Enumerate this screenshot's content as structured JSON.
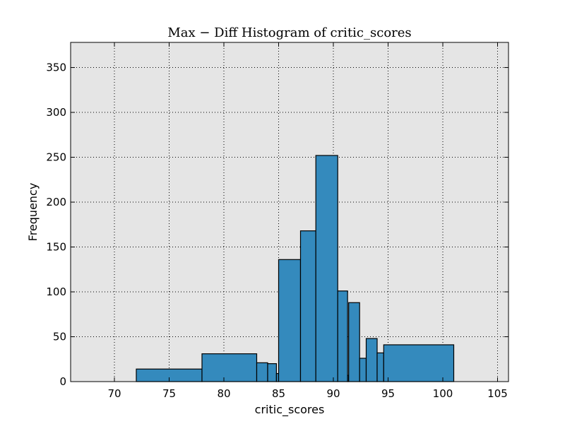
{
  "chart_data": {
    "type": "bar",
    "title": "Max − Diff Histogram of critic_scores",
    "xlabel": "critic_scores",
    "ylabel": "Frequency",
    "xlim": [
      66,
      106
    ],
    "ylim": [
      0,
      378
    ],
    "xticks": [
      "70",
      "75",
      "80",
      "85",
      "90",
      "95",
      "100",
      "105"
    ],
    "yticks": [
      "0",
      "50",
      "100",
      "150",
      "200",
      "250",
      "300",
      "350"
    ],
    "grid": true,
    "bins": [
      {
        "x0": 72.0,
        "x1": 78.0,
        "value": 14
      },
      {
        "x0": 78.0,
        "x1": 83.0,
        "value": 31
      },
      {
        "x0": 83.0,
        "x1": 84.0,
        "value": 21
      },
      {
        "x0": 84.0,
        "x1": 84.8,
        "value": 20
      },
      {
        "x0": 84.8,
        "x1": 85.0,
        "value": 9
      },
      {
        "x0": 85.0,
        "x1": 87.0,
        "value": 136
      },
      {
        "x0": 87.0,
        "x1": 88.4,
        "value": 168
      },
      {
        "x0": 88.4,
        "x1": 90.4,
        "value": 252
      },
      {
        "x0": 90.4,
        "x1": 91.3,
        "value": 101
      },
      {
        "x0": 91.3,
        "x1": 91.4,
        "value": 7
      },
      {
        "x0": 91.4,
        "x1": 92.4,
        "value": 88
      },
      {
        "x0": 92.4,
        "x1": 93.0,
        "value": 26
      },
      {
        "x0": 93.0,
        "x1": 94.0,
        "value": 48
      },
      {
        "x0": 94.0,
        "x1": 94.6,
        "value": 32
      },
      {
        "x0": 94.6,
        "x1": 101.0,
        "value": 41
      }
    ],
    "colors": {
      "bar_fill": "#348abd",
      "bar_stroke": "#000000",
      "plot_background": "#e5e5e5",
      "grid": "#000000"
    }
  }
}
